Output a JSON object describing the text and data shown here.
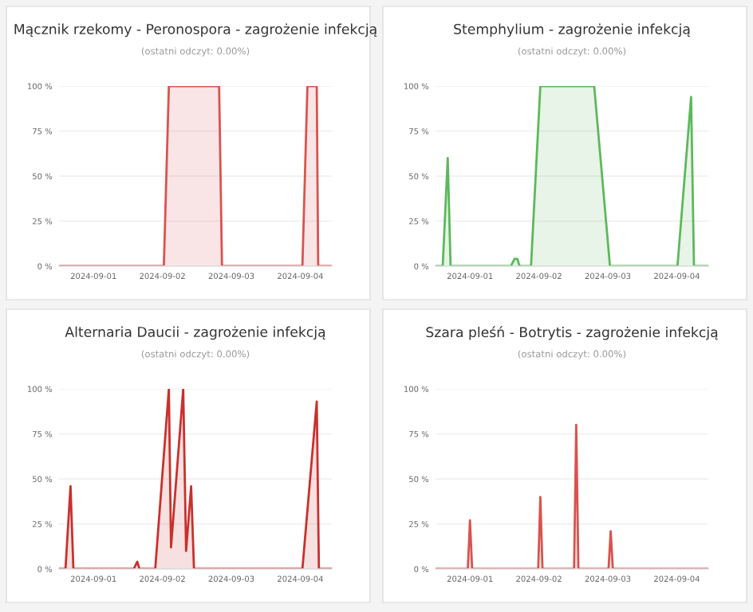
{
  "chart_data": [
    {
      "type": "area",
      "title": "Mącznik rzekomy - Peronospora - zagrożenie infekcją",
      "subtitle": "(ostatni odczyt: 0.00%)",
      "xlim": [
        "2024-08-31T12:00",
        "2024-09-04T11:00"
      ],
      "ylim": [
        0,
        100
      ],
      "xticks": [
        "2024-09-01",
        "2024-09-02",
        "2024-09-03",
        "2024-09-04"
      ],
      "yticks": [
        {
          "value": 0,
          "label": "0 %"
        },
        {
          "value": 25,
          "label": "25 %"
        },
        {
          "value": 50,
          "label": "50 %"
        },
        {
          "value": 75,
          "label": "75 %"
        },
        {
          "value": 100,
          "label": "100 %"
        }
      ],
      "grid": "y",
      "series": [
        {
          "color": "#d9534f",
          "x": [
            "2024-08-31T12:00",
            "2024-09-02T00:30",
            "2024-09-02T02:15",
            "2024-09-02T19:45",
            "2024-09-02T20:45",
            "2024-09-04T00:45",
            "2024-09-04T02:30",
            "2024-09-04T05:45",
            "2024-09-04T06:15",
            "2024-09-04T11:00"
          ],
          "values": [
            0,
            0,
            100,
            100,
            0,
            0,
            100,
            100,
            0,
            0
          ]
        }
      ]
    },
    {
      "type": "area",
      "title": "Stemphylium - zagrożenie infekcją",
      "subtitle": "(ostatni odczyt: 0.00%)",
      "xlim": [
        "2024-08-31T12:00",
        "2024-09-04T11:00"
      ],
      "ylim": [
        0,
        100
      ],
      "xticks": [
        "2024-09-01",
        "2024-09-02",
        "2024-09-03",
        "2024-09-04"
      ],
      "yticks": [
        {
          "value": 0,
          "label": "0 %"
        },
        {
          "value": 25,
          "label": "25 %"
        },
        {
          "value": 50,
          "label": "50 %"
        },
        {
          "value": 75,
          "label": "75 %"
        },
        {
          "value": 100,
          "label": "100 %"
        }
      ],
      "grid": "y",
      "series": [
        {
          "color": "#5cb85c",
          "x": [
            "2024-08-31T12:00",
            "2024-08-31T14:30",
            "2024-08-31T16:15",
            "2024-08-31T17:15",
            "2024-09-01T14:15",
            "2024-09-01T15:30",
            "2024-09-01T16:30",
            "2024-09-01T17:15",
            "2024-09-01T21:15",
            "2024-09-02T00:30",
            "2024-09-02T19:15",
            "2024-09-03T00:45",
            "2024-09-04T00:15",
            "2024-09-04T05:00",
            "2024-09-04T06:00",
            "2024-09-04T11:00"
          ],
          "values": [
            0,
            0,
            60,
            0,
            0,
            4,
            4,
            0,
            0,
            100,
            100,
            0,
            0,
            94,
            0,
            0
          ]
        }
      ]
    },
    {
      "type": "area",
      "title": "Alternaria Daucii - zagrożenie infekcją",
      "subtitle": "(ostatni odczyt: 0.00%)",
      "xlim": [
        "2024-08-31T12:00",
        "2024-09-04T11:00"
      ],
      "ylim": [
        0,
        100
      ],
      "xticks": [
        "2024-09-01",
        "2024-09-02",
        "2024-09-03",
        "2024-09-04"
      ],
      "yticks": [
        {
          "value": 0,
          "label": "0 %"
        },
        {
          "value": 25,
          "label": "25 %"
        },
        {
          "value": 50,
          "label": "50 %"
        },
        {
          "value": 75,
          "label": "75 %"
        },
        {
          "value": 100,
          "label": "100 %"
        }
      ],
      "grid": "y",
      "series": [
        {
          "color": "#c9302c",
          "x": [
            "2024-08-31T12:00",
            "2024-08-31T14:15",
            "2024-08-31T16:00",
            "2024-08-31T17:00",
            "2024-09-01T14:00",
            "2024-09-01T15:15",
            "2024-09-01T16:00",
            "2024-09-01T21:30",
            "2024-09-02T02:15",
            "2024-09-02T03:00",
            "2024-09-02T07:15",
            "2024-09-02T08:15",
            "2024-09-02T10:00",
            "2024-09-02T11:00",
            "2024-09-04T00:45",
            "2024-09-04T05:45",
            "2024-09-04T06:30",
            "2024-09-04T11:00"
          ],
          "values": [
            0,
            0,
            46,
            0,
            0,
            4,
            0,
            0,
            100,
            12,
            100,
            10,
            46,
            0,
            0,
            93,
            0,
            0
          ]
        }
      ]
    },
    {
      "type": "area",
      "title": "Szara pleśń - Botrytis - zagrożenie infekcją",
      "subtitle": "(ostatni odczyt: 0.00%)",
      "xlim": [
        "2024-08-31T12:00",
        "2024-09-04T11:00"
      ],
      "ylim": [
        0,
        100
      ],
      "xticks": [
        "2024-09-01",
        "2024-09-02",
        "2024-09-03",
        "2024-09-04"
      ],
      "yticks": [
        {
          "value": 0,
          "label": "0 %"
        },
        {
          "value": 25,
          "label": "25 %"
        },
        {
          "value": 50,
          "label": "50 %"
        },
        {
          "value": 75,
          "label": "75 %"
        },
        {
          "value": 100,
          "label": "100 %"
        }
      ],
      "grid": "y",
      "series": [
        {
          "color": "#d9534f",
          "x": [
            "2024-08-31T12:00",
            "2024-08-31T23:15",
            "2024-09-01T00:00",
            "2024-09-01T00:45",
            "2024-09-01T23:45",
            "2024-09-02T00:30",
            "2024-09-02T01:15",
            "2024-09-02T12:15",
            "2024-09-02T13:00",
            "2024-09-02T13:45",
            "2024-09-03T00:15",
            "2024-09-03T01:00",
            "2024-09-03T01:45",
            "2024-09-04T11:00"
          ],
          "values": [
            0,
            0,
            27,
            0,
            0,
            40,
            0,
            0,
            80,
            0,
            0,
            21,
            0,
            0
          ]
        }
      ]
    }
  ]
}
